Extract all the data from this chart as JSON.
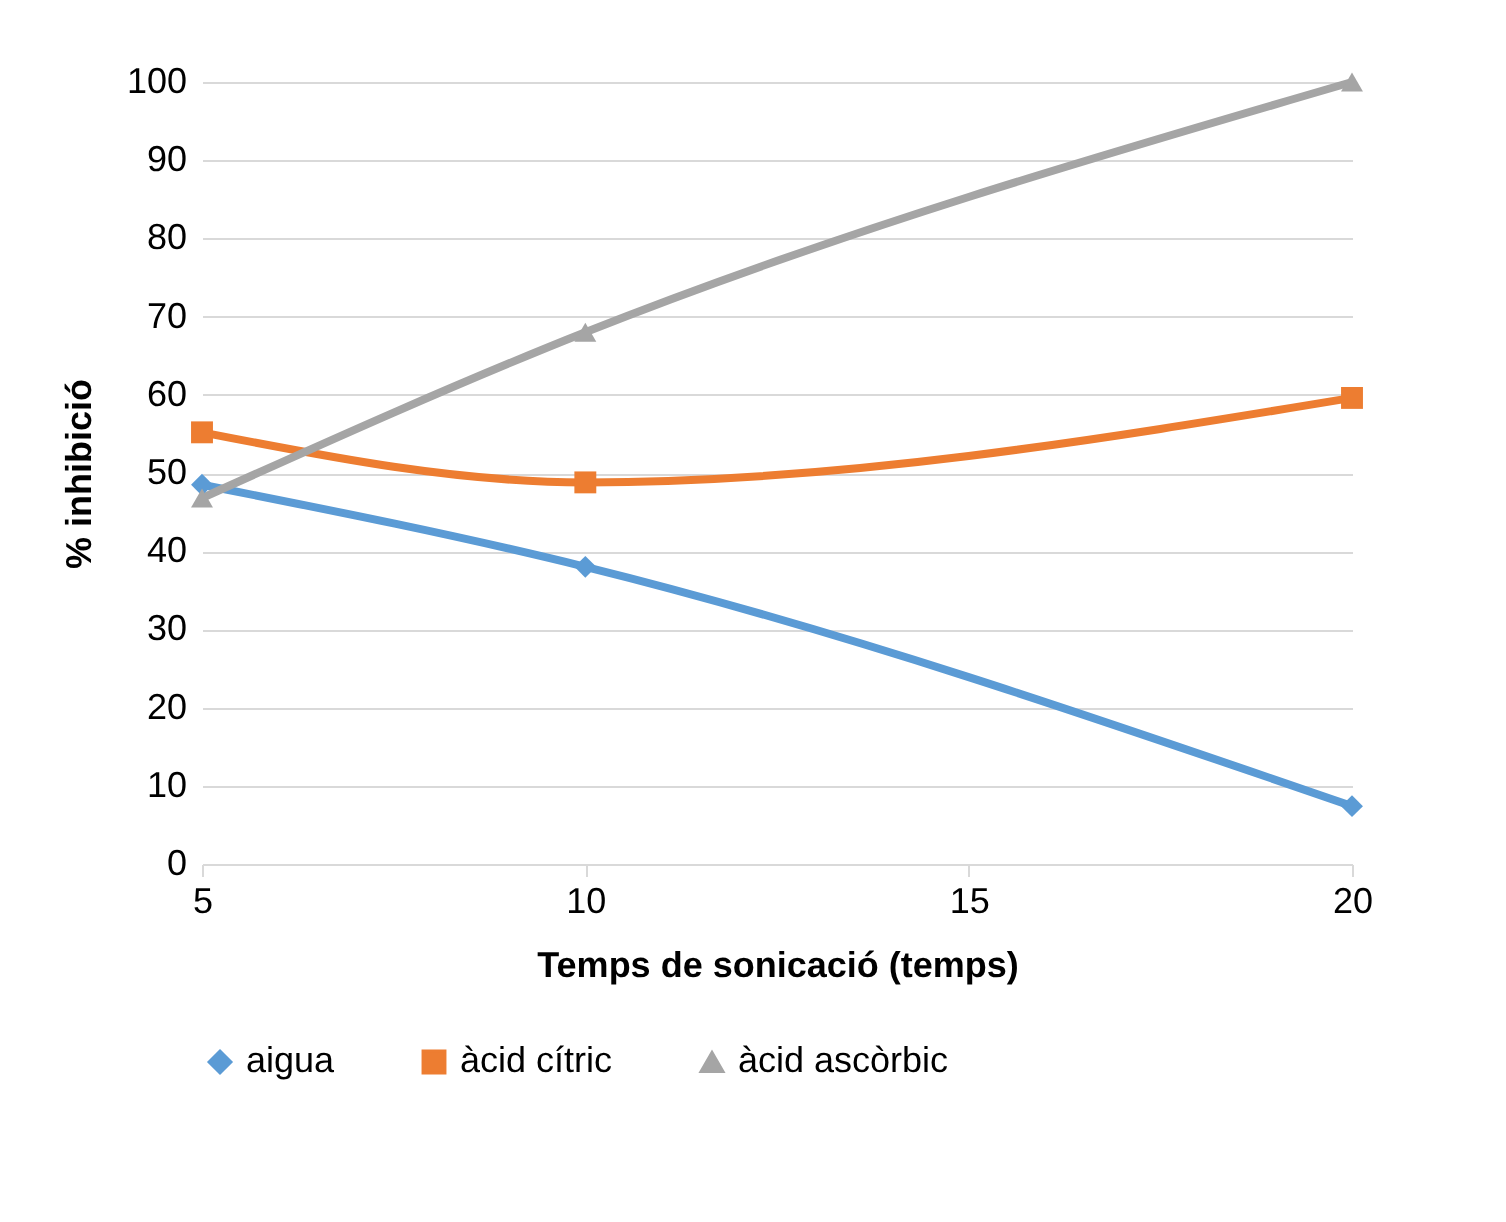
{
  "chart_data": {
    "type": "line",
    "xlabel": "Temps de sonicació (temps)",
    "ylabel": "% inhibició",
    "x": [
      5,
      10,
      20
    ],
    "xlim": [
      5,
      20
    ],
    "xticks": [
      5,
      10,
      15,
      20
    ],
    "ylim": [
      0,
      100
    ],
    "yticks": [
      0,
      10,
      20,
      30,
      40,
      50,
      60,
      70,
      80,
      90,
      100
    ],
    "grid": "y",
    "legend": "bottom",
    "line_style": "solid",
    "series": [
      {
        "name": "aigua",
        "color": "#5b9bd5",
        "marker": "diamond",
        "values": [
          48.5,
          38,
          7.4
        ]
      },
      {
        "name": "àcid cítric",
        "color": "#ed7d31",
        "marker": "square",
        "values": [
          55.2,
          48.8,
          59.6
        ]
      },
      {
        "name": "àcid ascòrbic",
        "color": "#a5a5a5",
        "marker": "triangle",
        "values": [
          46.8,
          68,
          100
        ]
      }
    ]
  }
}
